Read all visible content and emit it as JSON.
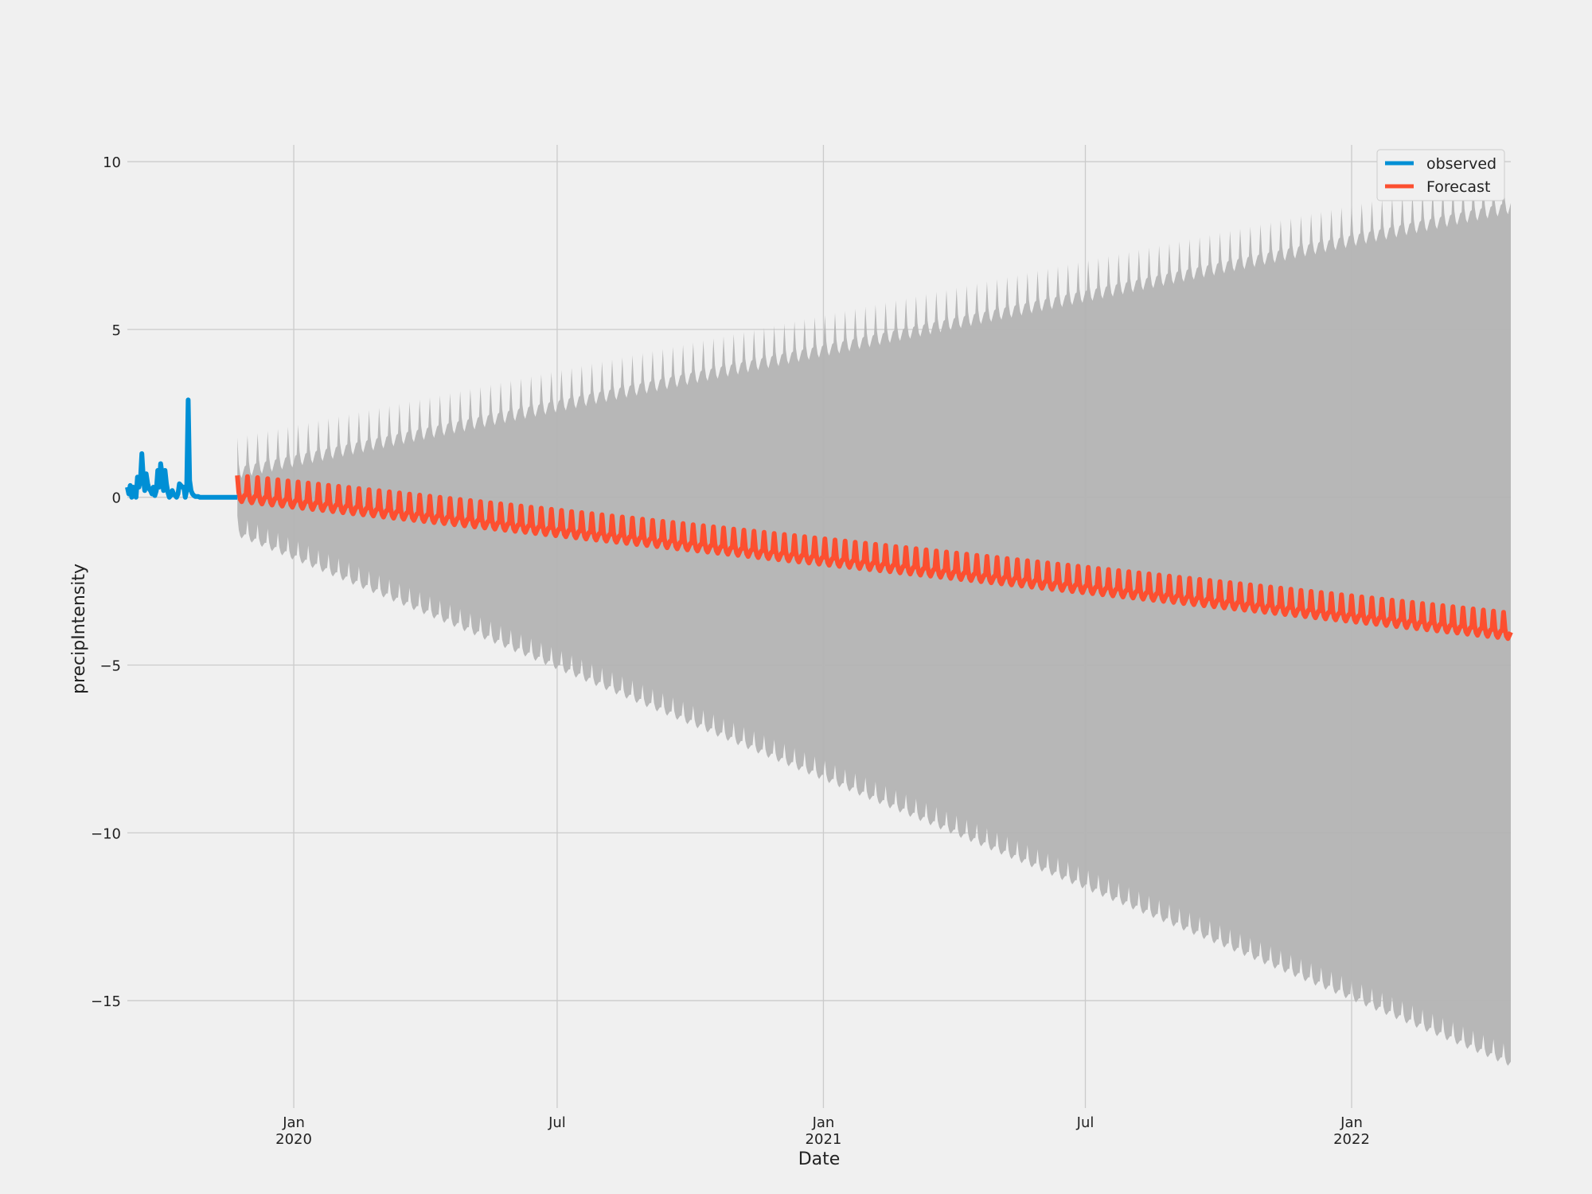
{
  "chart_data": {
    "type": "line",
    "title": "",
    "xlabel": "Date",
    "ylabel": "precipIntensity",
    "xlim": [
      "2019-09-08",
      "2022-04-21"
    ],
    "ylim": [
      -18.2,
      10.5
    ],
    "grid": true,
    "colors": {
      "observed": "#008fd5",
      "forecast": "#fc4f30",
      "band": "#b3b3b3",
      "background": "#f0f0f0",
      "grid": "#cbcbcb"
    },
    "y_ticks": [
      {
        "value": 10,
        "label": "10"
      },
      {
        "value": 5,
        "label": "5"
      },
      {
        "value": 0,
        "label": "0"
      },
      {
        "value": -5,
        "label": "−5"
      },
      {
        "value": -10,
        "label": "−10"
      },
      {
        "value": -15,
        "label": "−15"
      }
    ],
    "x_ticks": [
      {
        "date": "2020-01-01",
        "label": "Jan",
        "sublabel": "2020"
      },
      {
        "date": "2020-07-01",
        "label": "Jul",
        "sublabel": ""
      },
      {
        "date": "2021-01-01",
        "label": "Jan",
        "sublabel": "2021"
      },
      {
        "date": "2021-07-01",
        "label": "Jul",
        "sublabel": ""
      },
      {
        "date": "2022-01-01",
        "label": "Jan",
        "sublabel": "2022"
      }
    ],
    "legend": {
      "position": "top-right",
      "entries": [
        {
          "name": "observed",
          "series": "observed"
        },
        {
          "name": "Forecast",
          "series": "forecast"
        }
      ]
    },
    "series": [
      {
        "name": "observed",
        "x": [
          "2019-09-08",
          "2019-09-09",
          "2019-09-10",
          "2019-09-11",
          "2019-09-12",
          "2019-09-13",
          "2019-09-14",
          "2019-09-15",
          "2019-09-16",
          "2019-09-17",
          "2019-09-18",
          "2019-09-19",
          "2019-09-20",
          "2019-09-21",
          "2019-09-22",
          "2019-09-23",
          "2019-09-24",
          "2019-09-25",
          "2019-09-26",
          "2019-09-27",
          "2019-09-28",
          "2019-09-29",
          "2019-09-30",
          "2019-10-01",
          "2019-10-02",
          "2019-10-03",
          "2019-10-04",
          "2019-10-05",
          "2019-10-06",
          "2019-10-07",
          "2019-10-08",
          "2019-10-09",
          "2019-10-10",
          "2019-10-11",
          "2019-10-12",
          "2019-10-13",
          "2019-10-14",
          "2019-10-15",
          "2019-10-16",
          "2019-10-17",
          "2019-10-18",
          "2019-10-19",
          "2019-10-20",
          "2019-10-21",
          "2019-10-22",
          "2019-10-23",
          "2019-10-24",
          "2019-10-25",
          "2019-10-26",
          "2019-10-27",
          "2019-10-28",
          "2019-10-29",
          "2019-10-30",
          "2019-10-31",
          "2019-11-01",
          "2019-11-02",
          "2019-11-03",
          "2019-11-04",
          "2019-11-05",
          "2019-11-06",
          "2019-11-07",
          "2019-11-08",
          "2019-11-09",
          "2019-11-10",
          "2019-11-11",
          "2019-11-12",
          "2019-11-13",
          "2019-11-14",
          "2019-11-15",
          "2019-11-16",
          "2019-11-17",
          "2019-11-18",
          "2019-11-19",
          "2019-11-20",
          "2019-11-21",
          "2019-11-22",
          "2019-11-23"
        ],
        "y": [
          0.3,
          0.1,
          0.35,
          0.0,
          0.3,
          0.05,
          0.0,
          0.6,
          0.3,
          0.5,
          1.3,
          0.6,
          0.2,
          0.7,
          0.4,
          0.25,
          0.2,
          0.1,
          0.3,
          0.05,
          0.2,
          0.8,
          0.3,
          1.0,
          0.7,
          0.2,
          0.8,
          0.4,
          0.15,
          0.0,
          0.05,
          0.2,
          0.1,
          0.05,
          0.0,
          0.1,
          0.4,
          0.35,
          0.3,
          0.3,
          0.0,
          0.2,
          2.9,
          0.5,
          0.2,
          0.1,
          0.05,
          0.02,
          0.02,
          0.02,
          0.0,
          0.0,
          0.0,
          0.0,
          0.0,
          0.0,
          0.0,
          0.0,
          0.0,
          0.0,
          0.0,
          0.0,
          0.0,
          0.0,
          0.0,
          0.0,
          0.0,
          0.0,
          0.0,
          0.0,
          0.0,
          0.0,
          0.0,
          0.0,
          0.0,
          0.0,
          0.0
        ]
      },
      {
        "name": "Forecast",
        "start": "2019-11-23",
        "end": "2022-04-21",
        "trend_start": 0.1,
        "trend_end": -4.0,
        "spike_period_days": 7,
        "spike_height": 0.55,
        "upper_start": 0.9,
        "upper_end": 8.8,
        "lower_start": -1.0,
        "lower_end": -16.8
      }
    ]
  }
}
